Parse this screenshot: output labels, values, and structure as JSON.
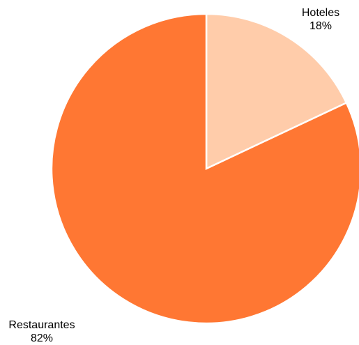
{
  "chart_data": {
    "type": "pie",
    "slices": [
      {
        "label": "Hoteles",
        "value": 18,
        "value_label": "18%",
        "color": "#FFCCAA"
      },
      {
        "label": "Restaurantes",
        "value": 82,
        "value_label": "82%",
        "color": "#FF7733"
      }
    ],
    "start_angle": "12 o'clock",
    "direction": "clockwise",
    "legend": "none",
    "label_placement": "outside"
  }
}
